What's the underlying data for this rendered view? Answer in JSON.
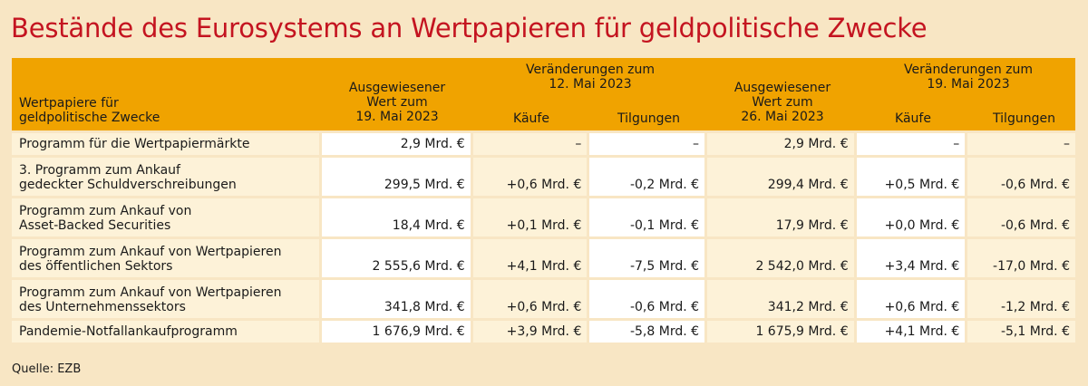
{
  "title": "Bestände des Eurosystems an Wertpapieren für geldpolitische Zwecke",
  "header": {
    "col1_line1": "Wertpapiere für",
    "col1_line2": "geldpolitische Zwecke",
    "col2_line1": "Ausgewiesener",
    "col2_line2": "Wert zum",
    "col2_line3": "19. Mai 2023",
    "group1_line1": "Veränderungen zum",
    "group1_line2": "12. Mai 2023",
    "col3": "Käufe",
    "col4": "Tilgungen",
    "col5_line1": "Ausgewiesener",
    "col5_line2": "Wert zum",
    "col5_line3": "26. Mai 2023",
    "group2_line1": "Veränderungen zum",
    "group2_line2": "19. Mai 2023",
    "col6": "Käufe",
    "col7": "Tilgungen"
  },
  "rows": [
    {
      "name_line1": "Programm für die Wertpapiermärkte",
      "name_line2": "",
      "v1": "2,9 Mrd. €",
      "k1": "–",
      "t1": "–",
      "v2": "2,9 Mrd. €",
      "k2": "–",
      "t2": "–"
    },
    {
      "name_line1": "3. Programm zum Ankauf",
      "name_line2": "gedeckter Schuldverschreibungen",
      "v1": "299,5 Mrd. €",
      "k1": "+0,6 Mrd. €",
      "t1": "-0,2 Mrd. €",
      "v2": "299,4 Mrd. €",
      "k2": "+0,5 Mrd. €",
      "t2": "-0,6 Mrd. €"
    },
    {
      "name_line1": "Programm zum Ankauf von",
      "name_line2": "Asset-Backed Securities",
      "v1": "18,4 Mrd. €",
      "k1": "+0,1 Mrd. €",
      "t1": "-0,1 Mrd. €",
      "v2": "17,9 Mrd. €",
      "k2": "+0,0 Mrd. €",
      "t2": "-0,6 Mrd. €"
    },
    {
      "name_line1": "Programm zum Ankauf von Wertpapieren",
      "name_line2": "des öffentlichen Sektors",
      "v1": "2 555,6 Mrd. €",
      "k1": "+4,1 Mrd. €",
      "t1": "-7,5 Mrd. €",
      "v2": "2 542,0 Mrd. €",
      "k2": "+3,4 Mrd. €",
      "t2": "-17,0 Mrd. €"
    },
    {
      "name_line1": "Programm zum Ankauf von Wertpapieren",
      "name_line2": "des Unternehmenssektors",
      "v1": "341,8 Mrd. €",
      "k1": "+0,6 Mrd. €",
      "t1": "-0,6 Mrd. €",
      "v2": "341,2 Mrd. €",
      "k2": "+0,6 Mrd. €",
      "t2": "-1,2 Mrd. €"
    },
    {
      "name_line1": "Pandemie-Notfallankaufprogramm",
      "name_line2": "",
      "v1": "1 676,9 Mrd. €",
      "k1": "+3,9 Mrd. €",
      "t1": "-5,8 Mrd. €",
      "v2": "1 675,9 Mrd. €",
      "k2": "+4,1 Mrd. €",
      "t2": "-5,1 Mrd. €"
    }
  ],
  "source": "Quelle: EZB"
}
